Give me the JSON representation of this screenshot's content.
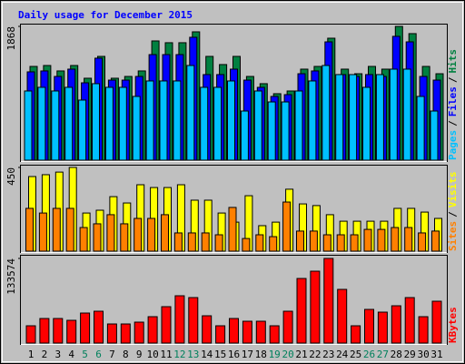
{
  "chart_data": [
    {
      "type": "bar",
      "title": "Daily usage for December 2015",
      "ylim": [
        0,
        1868
      ],
      "yticks": [
        1868
      ],
      "legend_separator": "/",
      "series": [
        {
          "name": "Pages",
          "color": "#00c0ff",
          "values": [
            966,
            1017,
            966,
            1017,
            839,
            1068,
            1017,
            1017,
            890,
            1106,
            1106,
            1106,
            1322,
            1017,
            1017,
            1106,
            686,
            966,
            813,
            813,
            966,
            1106,
            1322,
            1195,
            1195,
            1017,
            1195,
            1271,
            1271,
            890,
            686
          ]
        },
        {
          "name": "Files",
          "color": "#0000ff",
          "values": [
            1233,
            1246,
            1169,
            1271,
            1080,
            1424,
            1118,
            1118,
            1169,
            1474,
            1474,
            1474,
            1716,
            1195,
            1195,
            1271,
            1118,
            1017,
            890,
            915,
            1207,
            1246,
            1652,
            1195,
            1169,
            1195,
            1169,
            1729,
            1652,
            1169,
            1118
          ]
        },
        {
          "name": "Hits",
          "color": "#008040",
          "values": [
            1309,
            1322,
            1246,
            1322,
            1144,
            1449,
            1144,
            1169,
            1246,
            1665,
            1640,
            1640,
            1792,
            1449,
            1335,
            1449,
            1169,
            1068,
            928,
            966,
            1271,
            1309,
            1703,
            1271,
            1207,
            1309,
            1271,
            1868,
            1767,
            1309,
            1207
          ]
        }
      ]
    },
    {
      "type": "bar",
      "ylim": [
        0,
        450
      ],
      "yticks": [
        450
      ],
      "legend_separator": "/",
      "series": [
        {
          "name": "Sites",
          "color": "#ff8000",
          "values": [
            230,
            205,
            230,
            230,
            127,
            147,
            196,
            147,
            176,
            176,
            196,
            98,
            98,
            98,
            88,
            235,
            68,
            88,
            78,
            264,
            108,
            108,
            88,
            88,
            88,
            117,
            117,
            127,
            127,
            98,
            108
          ]
        },
        {
          "name": "Visits",
          "color": "#ffff00",
          "values": [
            401,
            411,
            425,
            450,
            205,
            220,
            293,
            259,
            357,
            342,
            342,
            357,
            274,
            274,
            205,
            156,
            298,
            137,
            156,
            333,
            254,
            245,
            196,
            161,
            161,
            161,
            161,
            230,
            230,
            210,
            176
          ]
        }
      ]
    },
    {
      "type": "bar",
      "ylim": [
        0,
        133574
      ],
      "yticks": [
        133574
      ],
      "categories": [
        "1",
        "2",
        "3",
        "4",
        "5",
        "6",
        "7",
        "8",
        "9",
        "10",
        "11",
        "12",
        "13",
        "14",
        "15",
        "16",
        "17",
        "18",
        "19",
        "20",
        "21",
        "22",
        "23",
        "24",
        "25",
        "26",
        "27",
        "28",
        "29",
        "30",
        "31"
      ],
      "category_colors": [
        "#000000",
        "#000000",
        "#000000",
        "#000000",
        "#00805c",
        "#00805c",
        "#000000",
        "#000000",
        "#000000",
        "#000000",
        "#000000",
        "#00805c",
        "#00805c",
        "#000000",
        "#000000",
        "#000000",
        "#000000",
        "#000000",
        "#00805c",
        "#00805c",
        "#000000",
        "#000000",
        "#000000",
        "#000000",
        "#000000",
        "#00805c",
        "#00805c",
        "#000000",
        "#000000",
        "#000000",
        "#000000"
      ],
      "series": [
        {
          "name": "KBytes",
          "color": "#ff0000",
          "values": [
            27284,
            38772,
            38772,
            35900,
            47388,
            50260,
            30156,
            30156,
            33028,
            41644,
            57440,
            74672,
            71800,
            43080,
            27284,
            38772,
            34464,
            34464,
            27284,
            50260,
            101956,
            113444,
            133574,
            84724,
            27284,
            53132,
            48824,
            58876,
            71800,
            41644,
            66056
          ]
        }
      ]
    }
  ]
}
